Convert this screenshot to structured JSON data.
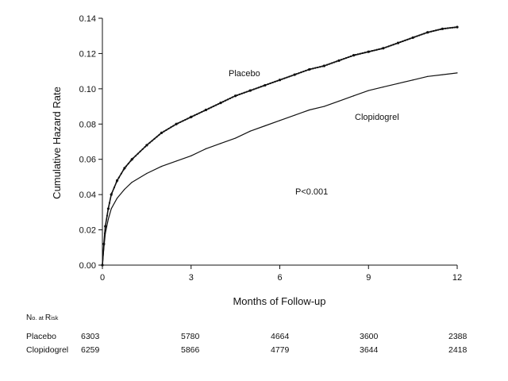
{
  "chart_data": {
    "type": "line",
    "title": "",
    "xlabel": "Months of Follow-up",
    "ylabel": "Cumulative Hazard Rate",
    "xlim": [
      0,
      12
    ],
    "ylim": [
      0,
      0.14
    ],
    "x_ticks": [
      0,
      3,
      6,
      9,
      12
    ],
    "y_ticks": [
      0.0,
      0.02,
      0.04,
      0.06,
      0.08,
      0.1,
      0.12,
      0.14
    ],
    "grid": false,
    "legend": "none (series labeled inline)",
    "series": [
      {
        "name": "Placebo",
        "color": "#111111",
        "marker": "dense small dots along the line",
        "x": [
          0.0,
          0.05,
          0.1,
          0.2,
          0.3,
          0.5,
          0.75,
          1.0,
          1.5,
          2.0,
          2.5,
          3.0,
          3.5,
          4.0,
          4.5,
          5.0,
          5.5,
          6.0,
          6.5,
          7.0,
          7.5,
          8.0,
          8.5,
          9.0,
          9.5,
          10.0,
          10.5,
          11.0,
          11.5,
          12.0
        ],
        "y": [
          0.0,
          0.012,
          0.022,
          0.032,
          0.04,
          0.048,
          0.055,
          0.06,
          0.068,
          0.075,
          0.08,
          0.084,
          0.088,
          0.092,
          0.096,
          0.099,
          0.102,
          0.105,
          0.108,
          0.111,
          0.113,
          0.116,
          0.119,
          0.121,
          0.123,
          0.126,
          0.129,
          0.132,
          0.134,
          0.135
        ]
      },
      {
        "name": "Clopidogrel",
        "color": "#111111",
        "marker": "none",
        "x": [
          0.0,
          0.05,
          0.1,
          0.2,
          0.3,
          0.5,
          0.75,
          1.0,
          1.5,
          2.0,
          2.5,
          3.0,
          3.5,
          4.0,
          4.5,
          5.0,
          5.5,
          6.0,
          6.5,
          7.0,
          7.5,
          8.0,
          8.5,
          9.0,
          9.5,
          10.0,
          10.5,
          11.0,
          11.5,
          12.0
        ],
        "y": [
          0.0,
          0.01,
          0.018,
          0.026,
          0.032,
          0.038,
          0.043,
          0.047,
          0.052,
          0.056,
          0.059,
          0.062,
          0.066,
          0.069,
          0.072,
          0.076,
          0.079,
          0.082,
          0.085,
          0.088,
          0.09,
          0.093,
          0.096,
          0.099,
          0.101,
          0.103,
          0.105,
          0.107,
          0.108,
          0.109
        ]
      }
    ],
    "annotations": {
      "placebo_label": "Placebo",
      "clopidogrel_label": "Clopidogrel",
      "p_value": "P<0.001"
    },
    "risk_table": {
      "header_first": "N",
      "header_rest": "o. at ",
      "header_second_cap": "R",
      "header_end": "isk",
      "rows": [
        {
          "label": "Placebo",
          "values": [
            "6303",
            "5780",
            "4664",
            "3600",
            "2388"
          ]
        },
        {
          "label": "Clopidogrel",
          "values": [
            "6259",
            "5866",
            "4779",
            "3644",
            "2418"
          ]
        }
      ]
    }
  }
}
